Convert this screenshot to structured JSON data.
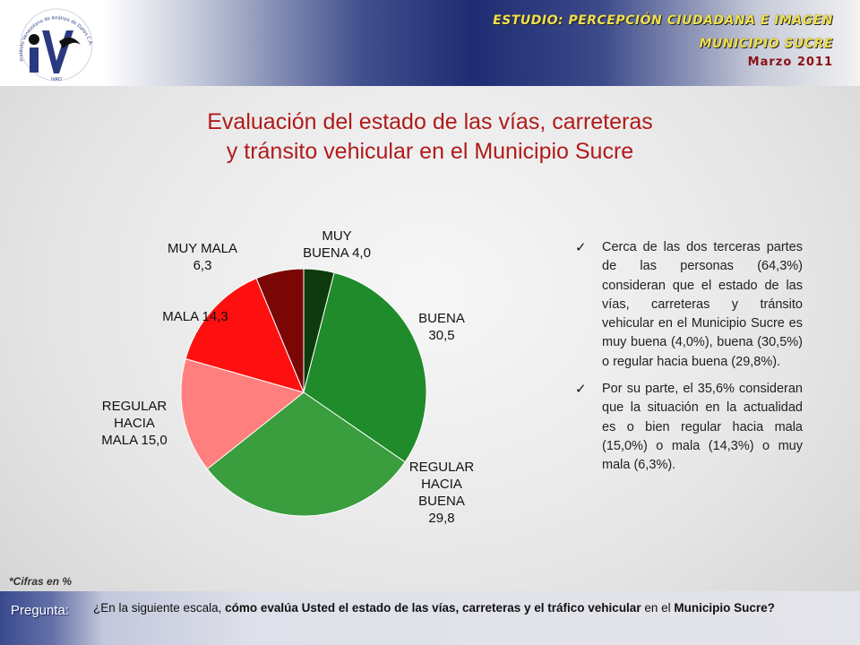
{
  "header": {
    "study": "ESTUDIO: PERCEPCIÓN CIUDADANA E IMAGEN",
    "municipality": "MUNICIPIO SUCRE",
    "date": "Marzo 2011",
    "logo_ring_text": "Instituto Venezolano de Análisis de Datos C.A.",
    "logo_letters": "IVAD"
  },
  "title": {
    "line1": "Evaluación del estado de las vías, carreteras",
    "line2": "y tránsito vehicular en el Municipio Sucre"
  },
  "chart_data": {
    "type": "pie",
    "title": "",
    "unit": "%",
    "start": "top, clockwise",
    "slices": [
      {
        "label_lines": [
          "MUY",
          "BUENA 4,0"
        ],
        "value": 4.0,
        "color": "#0d3b0d"
      },
      {
        "label_lines": [
          "BUENA",
          "30,5"
        ],
        "value": 30.5,
        "color": "#1f8b2a"
      },
      {
        "label_lines": [
          "REGULAR",
          "HACIA",
          "BUENA",
          "29,8"
        ],
        "value": 29.8,
        "color": "#3a9d3e"
      },
      {
        "label_lines": [
          "REGULAR",
          "HACIA",
          "MALA 15,0"
        ],
        "value": 15.0,
        "color": "#ff7f7f"
      },
      {
        "label_lines": [
          "MALA 14,3"
        ],
        "value": 14.3,
        "color": "#ff1010"
      },
      {
        "label_lines": [
          "MUY MALA",
          "6,3"
        ],
        "value": 6.3,
        "color": "#7a0606"
      }
    ]
  },
  "notes": [
    "Cerca de las dos terceras partes de las personas (64,3%) consideran que el estado de las vías, carreteras y tránsito vehicular en el Municipio Sucre es muy buena (4,0%), buena (30,5%) o regular hacia buena (29,8%).",
    "Por su parte, el 35,6% consideran que la situación en la actualidad es o bien regular hacia mala (15,0%) o mala (14,3%) o muy mala (6,3%)."
  ],
  "footnote": "*Cifras en %",
  "question": {
    "label": "Pregunta:",
    "text_1": "¿En la siguiente escala, ",
    "text_2": "cómo evalúa Usted el estado de las vías, carreteras y el tráfico vehicular",
    "text_3": " en el ",
    "text_4": "Municipio Sucre?"
  }
}
